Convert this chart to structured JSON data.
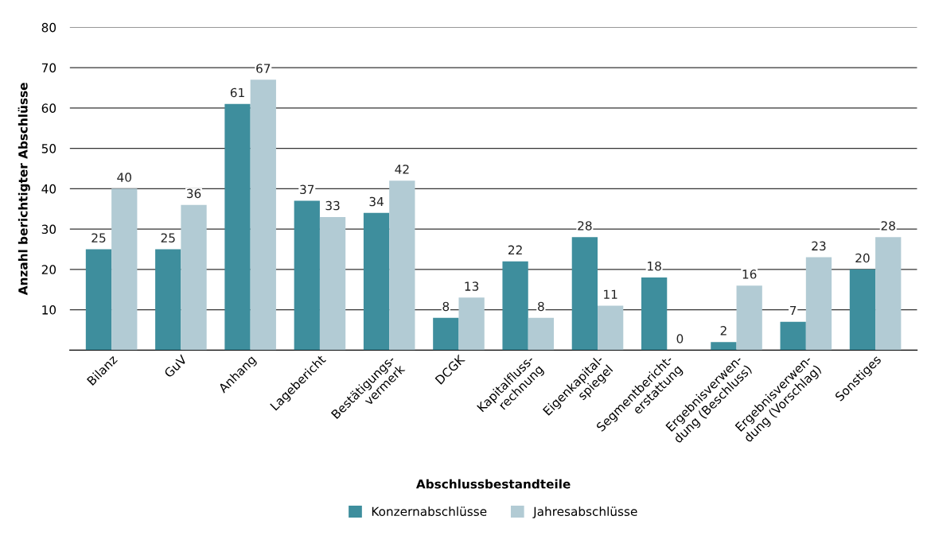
{
  "chart_data": {
    "type": "bar",
    "xlabel": "Abschlussbestandteile",
    "ylabel": "Anzahl berichtigter Abschlüsse",
    "categories": [
      "Bilanz",
      "GuV",
      "Anhang",
      "Lagebericht",
      "Bestätigungs-\nvermerk",
      "DCGK",
      "Kapitalfluss-\nrechnung",
      "Eigenkapital-\nspiegel",
      "Segmentbericht-\nerstattung",
      "Ergebnisverwen-\ndung (Beschluss)",
      "Ergebnisverwen-\ndung (Vorschlag)",
      "Sonstiges"
    ],
    "series": [
      {
        "name": "Konzernabschlüsse",
        "color": "#3e8e9d",
        "values": [
          25,
          25,
          61,
          37,
          34,
          8,
          22,
          28,
          18,
          2,
          7,
          20
        ]
      },
      {
        "name": "Jahresabschlüsse",
        "color": "#b2cbd4",
        "values": [
          40,
          36,
          67,
          33,
          42,
          13,
          8,
          11,
          0,
          16,
          23,
          28
        ]
      }
    ],
    "ylim": [
      0,
      80
    ],
    "yticks": [
      10,
      20,
      30,
      40,
      50,
      60,
      70,
      80
    ],
    "grid": "y",
    "legend": "bottom",
    "data_labels": true
  }
}
